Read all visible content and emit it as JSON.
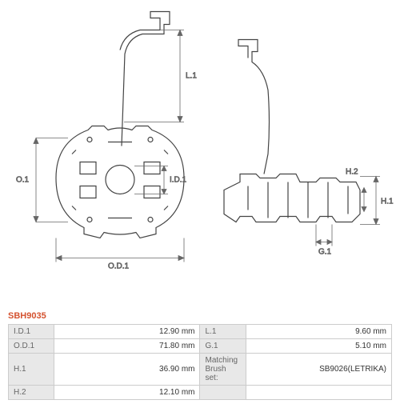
{
  "product_code": "SBH9035",
  "diagram": {
    "stroke_color": "#444444",
    "dim_color": "#666666",
    "dim_fontsize": 10,
    "line_width": 1.2,
    "labels": {
      "L1": "L.1",
      "O1": "O.1",
      "ID1": "I.D.1",
      "OD1": "O.D.1",
      "H2": "H.2",
      "H1": "H.1",
      "G1": "G.1"
    }
  },
  "spec_table": {
    "border_color": "#cccccc",
    "label_bg": "#e8e8e8",
    "value_bg": "#ffffff",
    "rows": [
      {
        "l1": "I.D.1",
        "v1": "12.90 mm",
        "l2": "L.1",
        "v2": "9.60 mm"
      },
      {
        "l1": "O.D.1",
        "v1": "71.80 mm",
        "l2": "G.1",
        "v2": "5.10 mm"
      },
      {
        "l1": "H.1",
        "v1": "36.90 mm",
        "l2": "Matching Brush set:",
        "v2": "SB9026(LETRIKA)"
      },
      {
        "l1": "H.2",
        "v1": "12.10 mm",
        "l2": "",
        "v2": ""
      }
    ]
  }
}
